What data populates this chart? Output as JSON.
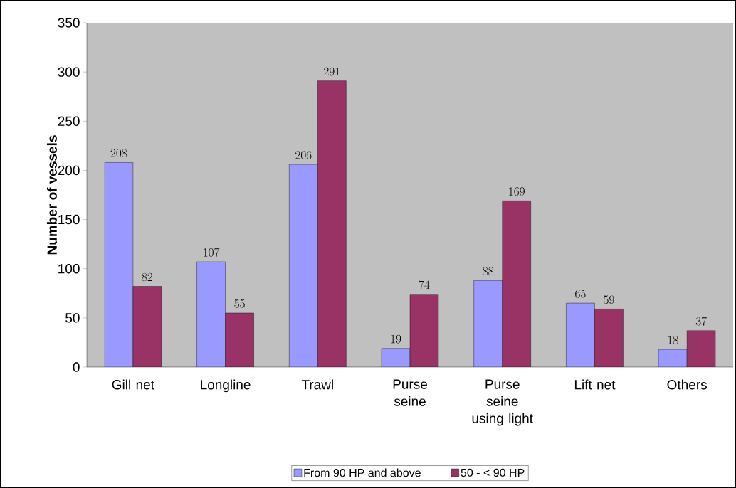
{
  "chart_data": {
    "type": "bar",
    "ylabel": "Number of vessels",
    "categories": [
      "Gill net",
      "Longline",
      "Trawl",
      "Purse seine",
      "Purse seine using light",
      "Lift net",
      "Others"
    ],
    "series": [
      {
        "name": "From 90 HP and above",
        "color": "#9999ff",
        "values": [
          208,
          107,
          206,
          19,
          88,
          65,
          18
        ]
      },
      {
        "name": "50 - < 90 HP",
        "color": "#993366",
        "values": [
          82,
          55,
          291,
          74,
          169,
          59,
          37
        ]
      }
    ],
    "ylim": [
      0,
      350
    ],
    "yticks": [
      0,
      50,
      100,
      150,
      200,
      250,
      300,
      350
    ],
    "data_labels": true,
    "legend": "bottom",
    "grid": false
  }
}
